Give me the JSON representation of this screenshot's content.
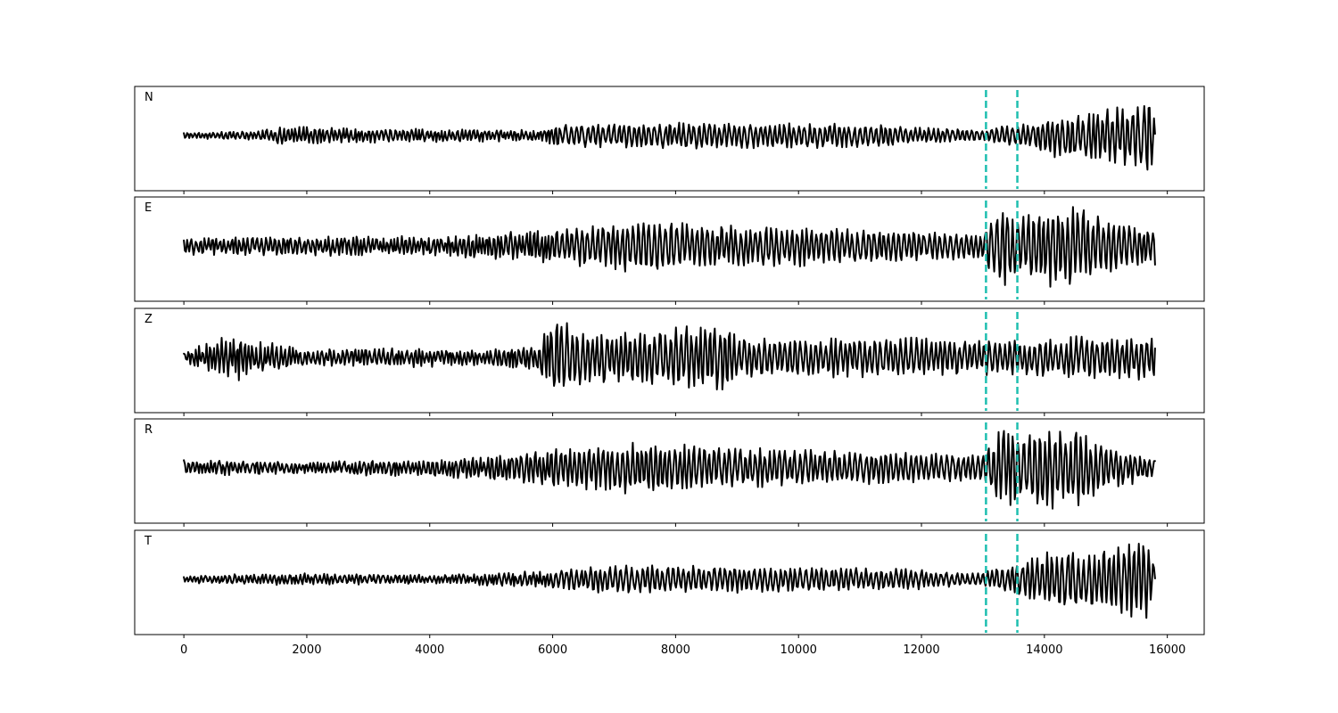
{
  "chart_data": {
    "type": "line",
    "title": "",
    "xlabel": "",
    "ylabel": "",
    "xlim": [
      -800,
      16600
    ],
    "xticks": [
      0,
      2000,
      4000,
      6000,
      8000,
      10000,
      12000,
      14000,
      16000
    ],
    "xtick_labels": [
      "0",
      "2000",
      "4000",
      "6000",
      "8000",
      "10000",
      "12000",
      "14000",
      "16000"
    ],
    "trace_color": "#000000",
    "marker_color": "#1fbfb0",
    "markers": [
      13050,
      13560
    ],
    "trace_x_range": [
      0,
      15800
    ],
    "panels": [
      {
        "label": "N",
        "envelope": [
          [
            0,
            0.08
          ],
          [
            1200,
            0.1
          ],
          [
            1500,
            0.2
          ],
          [
            5800,
            0.12
          ],
          [
            6000,
            0.26
          ],
          [
            8000,
            0.3
          ],
          [
            11000,
            0.28
          ],
          [
            12500,
            0.16
          ],
          [
            13000,
            0.14
          ],
          [
            13200,
            0.22
          ],
          [
            13800,
            0.3
          ],
          [
            14300,
            0.55
          ],
          [
            15000,
            0.6
          ],
          [
            15500,
            0.75
          ],
          [
            15700,
            0.98
          ],
          [
            15800,
            0.3
          ]
        ]
      },
      {
        "label": "E",
        "envelope": [
          [
            0,
            0.2
          ],
          [
            2000,
            0.22
          ],
          [
            4000,
            0.22
          ],
          [
            5500,
            0.34
          ],
          [
            6000,
            0.4
          ],
          [
            7600,
            0.62
          ],
          [
            8500,
            0.5
          ],
          [
            10000,
            0.45
          ],
          [
            12000,
            0.36
          ],
          [
            12900,
            0.3
          ],
          [
            13100,
            0.55
          ],
          [
            13300,
            1.0
          ],
          [
            13600,
            0.75
          ],
          [
            14400,
            1.0
          ],
          [
            15000,
            0.6
          ],
          [
            15800,
            0.45
          ]
        ]
      },
      {
        "label": "Z",
        "envelope": [
          [
            0,
            0.12
          ],
          [
            500,
            0.4
          ],
          [
            800,
            0.55
          ],
          [
            1200,
            0.4
          ],
          [
            2000,
            0.2
          ],
          [
            4000,
            0.22
          ],
          [
            5000,
            0.18
          ],
          [
            5800,
            0.35
          ],
          [
            6000,
            1.0
          ],
          [
            6200,
            0.85
          ],
          [
            7000,
            0.55
          ],
          [
            8800,
            0.85
          ],
          [
            9000,
            0.45
          ],
          [
            11000,
            0.45
          ],
          [
            13000,
            0.42
          ],
          [
            14000,
            0.45
          ],
          [
            15800,
            0.5
          ]
        ]
      },
      {
        "label": "R",
        "envelope": [
          [
            0,
            0.18
          ],
          [
            2000,
            0.15
          ],
          [
            4000,
            0.2
          ],
          [
            5500,
            0.35
          ],
          [
            6000,
            0.45
          ],
          [
            7500,
            0.6
          ],
          [
            9000,
            0.45
          ],
          [
            11000,
            0.38
          ],
          [
            12900,
            0.3
          ],
          [
            13100,
            0.55
          ],
          [
            13300,
            1.0
          ],
          [
            13600,
            0.8
          ],
          [
            14400,
            0.95
          ],
          [
            15000,
            0.55
          ],
          [
            15800,
            0.2
          ]
        ]
      },
      {
        "label": "T",
        "envelope": [
          [
            0,
            0.08
          ],
          [
            1500,
            0.14
          ],
          [
            4000,
            0.1
          ],
          [
            6000,
            0.2
          ],
          [
            6800,
            0.32
          ],
          [
            9000,
            0.32
          ],
          [
            12000,
            0.22
          ],
          [
            12800,
            0.14
          ],
          [
            13100,
            0.2
          ],
          [
            13500,
            0.35
          ],
          [
            14400,
            0.75
          ],
          [
            15000,
            0.65
          ],
          [
            15500,
            0.9
          ],
          [
            15650,
            1.0
          ],
          [
            15800,
            0.25
          ]
        ]
      }
    ]
  }
}
